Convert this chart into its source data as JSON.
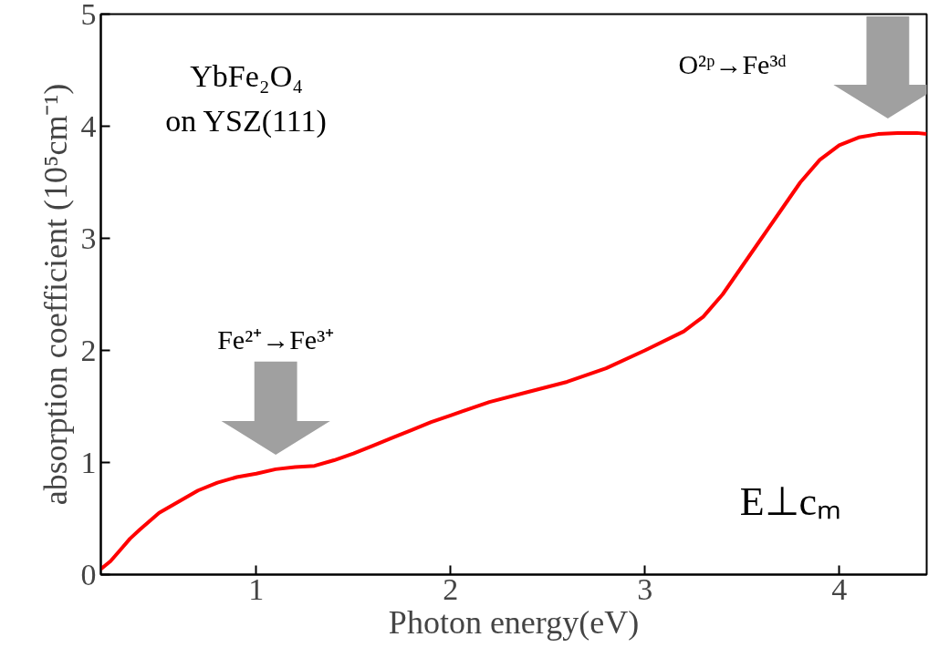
{
  "chart_data": {
    "type": "line",
    "xlabel": "Photon energy(eV)",
    "ylabel": "absorption coefficient (10⁵cm⁻¹)",
    "xlim": [
      0.2,
      4.45
    ],
    "ylim": [
      0,
      5
    ],
    "xticks": [
      1,
      2,
      3,
      4
    ],
    "yticks": [
      0,
      1,
      2,
      3,
      4,
      5
    ],
    "grid": false,
    "marker": "none",
    "line_style": "solid",
    "series": [
      {
        "color": "#ff0000",
        "x": [
          0.2,
          0.25,
          0.3,
          0.35,
          0.4,
          0.5,
          0.6,
          0.7,
          0.8,
          0.9,
          1.0,
          1.1,
          1.2,
          1.3,
          1.4,
          1.5,
          1.6,
          1.7,
          1.8,
          1.9,
          2.0,
          2.2,
          2.4,
          2.6,
          2.8,
          3.0,
          3.2,
          3.3,
          3.4,
          3.5,
          3.6,
          3.7,
          3.8,
          3.9,
          4.0,
          4.1,
          4.2,
          4.3,
          4.4,
          4.45
        ],
        "values": [
          0.05,
          0.12,
          0.22,
          0.32,
          0.4,
          0.55,
          0.65,
          0.75,
          0.82,
          0.87,
          0.9,
          0.94,
          0.96,
          0.97,
          1.02,
          1.08,
          1.15,
          1.22,
          1.29,
          1.36,
          1.42,
          1.54,
          1.63,
          1.72,
          1.84,
          2.0,
          2.17,
          2.3,
          2.5,
          2.75,
          3.0,
          3.25,
          3.5,
          3.7,
          3.83,
          3.9,
          3.93,
          3.94,
          3.94,
          3.93
        ]
      }
    ],
    "annotations": [
      "YbFe₂O₄",
      "on YSZ(111)",
      "Fe²⁺→Fe³⁺",
      "O²ᵖ→Fe³ᵈ",
      "E⊥cₘ"
    ]
  }
}
